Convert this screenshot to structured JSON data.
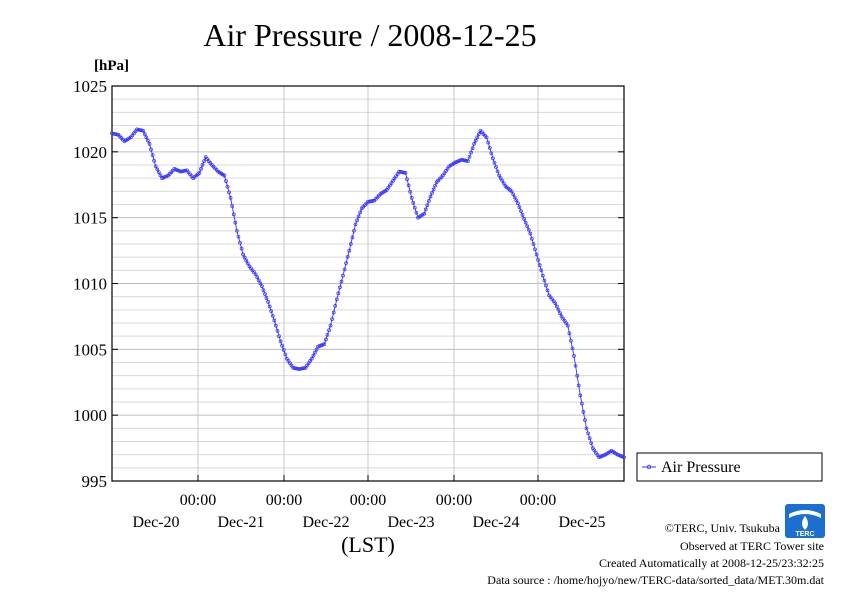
{
  "chart_data": {
    "type": "line",
    "title": "Air Pressure / 2008-12-25",
    "ylabel": "[hPa]",
    "xlabel": "(LST)",
    "ylim": [
      995,
      1025
    ],
    "yticks": [
      "1025",
      "1020",
      "1015",
      "1010",
      "1005",
      "1000",
      "995"
    ],
    "x_time_labels": [
      "00:00",
      "00:00",
      "00:00",
      "00:00",
      "00:00"
    ],
    "x_date_labels": [
      "Dec-20",
      "Dec-21",
      "Dec-22",
      "Dec-23",
      "Dec-24",
      "Dec-25"
    ],
    "xlim_hours": [
      0,
      144
    ],
    "grid": true,
    "legend": "right",
    "series": [
      {
        "name": "Air Pressure",
        "color": "#3333ff",
        "points": [
          [
            0,
            1021.4
          ],
          [
            2,
            1021.3
          ],
          [
            4,
            1020.8
          ],
          [
            6,
            1021.1
          ],
          [
            8,
            1021.7
          ],
          [
            10,
            1021.6
          ],
          [
            12,
            1020.6
          ],
          [
            14,
            1018.9
          ],
          [
            16,
            1018.0
          ],
          [
            18,
            1018.2
          ],
          [
            20,
            1018.7
          ],
          [
            22,
            1018.5
          ],
          [
            24,
            1018.6
          ],
          [
            26,
            1018.0
          ],
          [
            28,
            1018.4
          ],
          [
            30,
            1019.6
          ],
          [
            32,
            1019.0
          ],
          [
            34,
            1018.5
          ],
          [
            36,
            1018.2
          ],
          [
            38,
            1016.5
          ],
          [
            40,
            1014.0
          ],
          [
            42,
            1012.2
          ],
          [
            44,
            1011.3
          ],
          [
            46,
            1010.7
          ],
          [
            48,
            1009.8
          ],
          [
            50,
            1008.6
          ],
          [
            52,
            1007.2
          ],
          [
            54,
            1005.6
          ],
          [
            56,
            1004.3
          ],
          [
            58,
            1003.6
          ],
          [
            60,
            1003.5
          ],
          [
            62,
            1003.6
          ],
          [
            64,
            1004.3
          ],
          [
            66,
            1005.2
          ],
          [
            68,
            1005.4
          ],
          [
            70,
            1006.8
          ],
          [
            72,
            1008.8
          ],
          [
            74,
            1010.6
          ],
          [
            76,
            1012.5
          ],
          [
            78,
            1014.5
          ],
          [
            80,
            1015.7
          ],
          [
            82,
            1016.2
          ],
          [
            84,
            1016.3
          ],
          [
            86,
            1016.8
          ],
          [
            88,
            1017.1
          ],
          [
            90,
            1017.8
          ],
          [
            92,
            1018.5
          ],
          [
            94,
            1018.4
          ],
          [
            96,
            1016.5
          ],
          [
            98,
            1015.0
          ],
          [
            100,
            1015.3
          ],
          [
            102,
            1016.6
          ],
          [
            104,
            1017.7
          ],
          [
            106,
            1018.2
          ],
          [
            108,
            1018.9
          ],
          [
            110,
            1019.2
          ],
          [
            112,
            1019.4
          ],
          [
            114,
            1019.3
          ],
          [
            116,
            1020.6
          ],
          [
            118,
            1021.6
          ],
          [
            120,
            1021.1
          ],
          [
            122,
            1019.5
          ],
          [
            124,
            1018.2
          ],
          [
            126,
            1017.4
          ],
          [
            128,
            1017.0
          ],
          [
            130,
            1016.1
          ],
          [
            132,
            1014.9
          ],
          [
            134,
            1013.8
          ],
          [
            136,
            1012.2
          ],
          [
            138,
            1010.6
          ],
          [
            140,
            1009.1
          ],
          [
            142,
            1008.5
          ],
          [
            144,
            1007.5
          ],
          [
            146,
            1006.8
          ],
          [
            148,
            1004.5
          ],
          [
            150,
            1001.5
          ],
          [
            152,
            999.0
          ],
          [
            154,
            997.5
          ],
          [
            156,
            996.8
          ],
          [
            158,
            997.0
          ],
          [
            160,
            997.3
          ],
          [
            162,
            997.0
          ],
          [
            164,
            996.8
          ]
        ]
      }
    ]
  },
  "credits": {
    "copyright": "©TERC, Univ. Tsukuba",
    "site": "Observed at TERC Tower site",
    "created": "Created Automatically at 2008-12-25/23:32:25",
    "source": "Data source : /home/hojyo/new/TERC-data/sorted_data/MET.30m.dat"
  },
  "logo": {
    "text": "TERC",
    "color": "#1a6fd0"
  }
}
